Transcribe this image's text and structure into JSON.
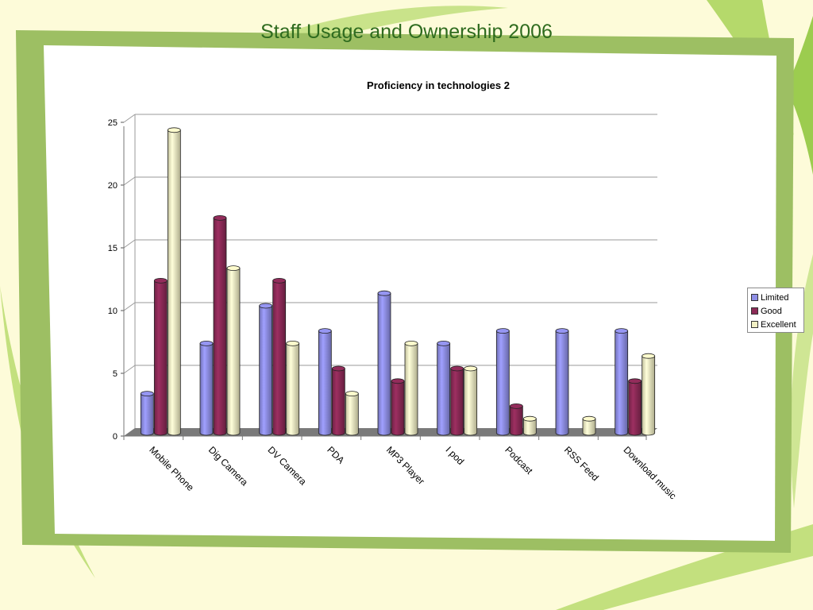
{
  "slide": {
    "title": "Staff Usage and Ownership 2006"
  },
  "chart_data": {
    "type": "bar",
    "title": "Proficiency in technologies 2",
    "categories": [
      "Mobile Phone",
      "Dig Camera",
      "DV Camera",
      "PDA",
      "MP3 Player",
      "I pod",
      "Podcast",
      "RSS Feed",
      "Download music"
    ],
    "series": [
      {
        "name": "Limited",
        "values": [
          3,
          7,
          10,
          8,
          11,
          7,
          8,
          8,
          8
        ],
        "color": "#8f8fe6"
      },
      {
        "name": "Good",
        "values": [
          12,
          17,
          12,
          5,
          4,
          5,
          2,
          0,
          4
        ],
        "color": "#8c2a57"
      },
      {
        "name": "Excellent",
        "values": [
          24,
          13,
          7,
          3,
          7,
          5,
          1,
          1,
          6
        ],
        "color": "#f1efc3"
      }
    ],
    "ylim": [
      0,
      25
    ],
    "yticks": [
      "0",
      "5",
      "10",
      "15",
      "20",
      "25"
    ],
    "grid": true,
    "legend_position": "right",
    "style": "3d-cylinder"
  }
}
